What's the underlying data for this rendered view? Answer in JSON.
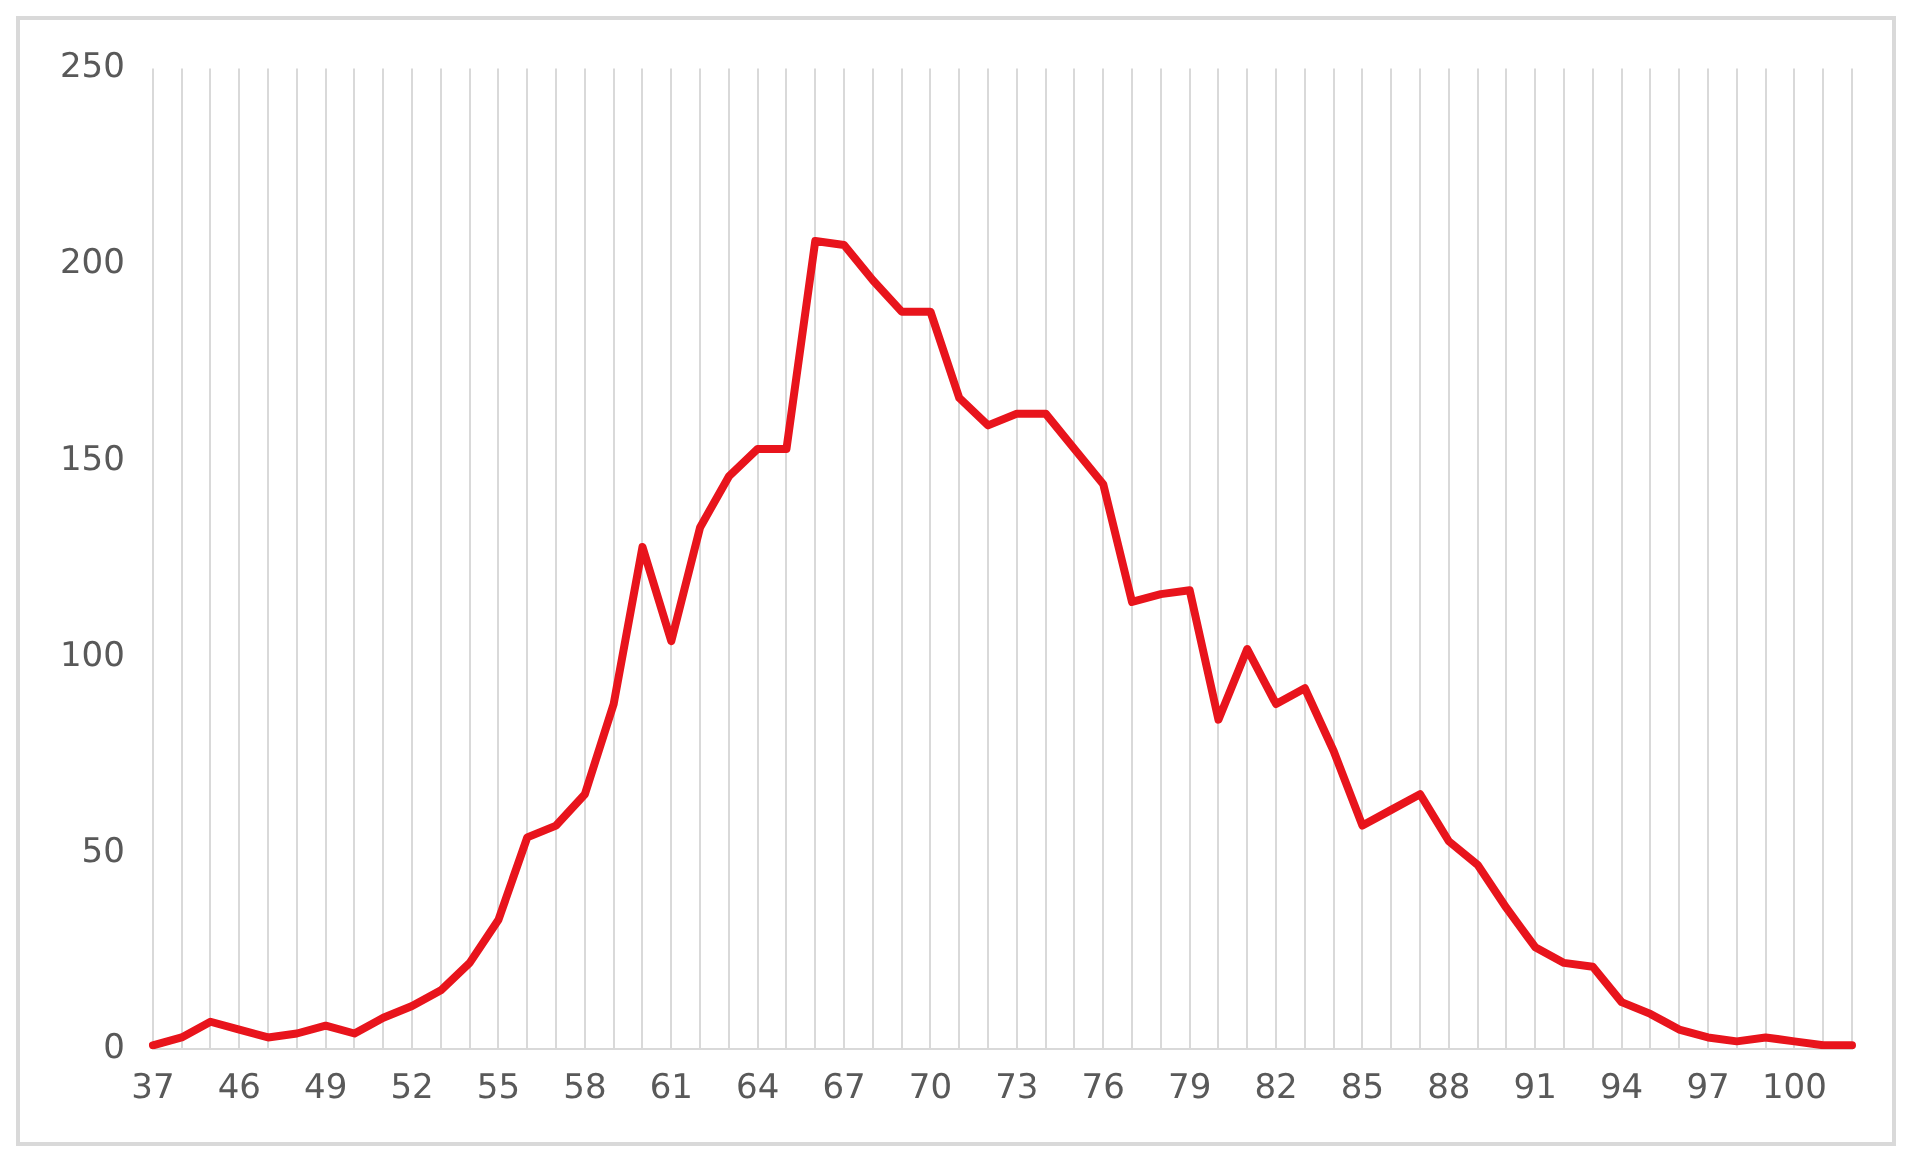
{
  "chart_data": {
    "type": "line",
    "categories": [
      "37",
      null,
      null,
      "46",
      null,
      null,
      "49",
      null,
      null,
      "52",
      null,
      null,
      "55",
      null,
      null,
      "58",
      null,
      null,
      "61",
      null,
      null,
      "64",
      null,
      null,
      "67",
      null,
      null,
      "70",
      null,
      null,
      "73",
      null,
      null,
      "76",
      null,
      null,
      "79",
      null,
      null,
      "82",
      null,
      null,
      "85",
      null,
      null,
      "88",
      null,
      null,
      "91",
      null,
      null,
      "94",
      null,
      null,
      "97",
      null,
      null,
      "100",
      null,
      null
    ],
    "series": [
      {
        "color": "#e8141c",
        "values": [
          1,
          3,
          7,
          5,
          3,
          4,
          6,
          4,
          8,
          11,
          15,
          22,
          33,
          54,
          57,
          65,
          88,
          128,
          104,
          133,
          146,
          153,
          153,
          206,
          205,
          196,
          188,
          188,
          166,
          159,
          162,
          162,
          153,
          144,
          114,
          116,
          117,
          84,
          102,
          88,
          92,
          76,
          57,
          61,
          65,
          53,
          47,
          36,
          26,
          22,
          21,
          12,
          9,
          5,
          3,
          2,
          3,
          2,
          1,
          1
        ]
      }
    ],
    "ylim": [
      0,
      250
    ],
    "yticks": [
      0,
      50,
      100,
      150,
      200,
      250
    ],
    "grid": "x",
    "legend": false,
    "marker": "none",
    "line_style": "solid"
  }
}
